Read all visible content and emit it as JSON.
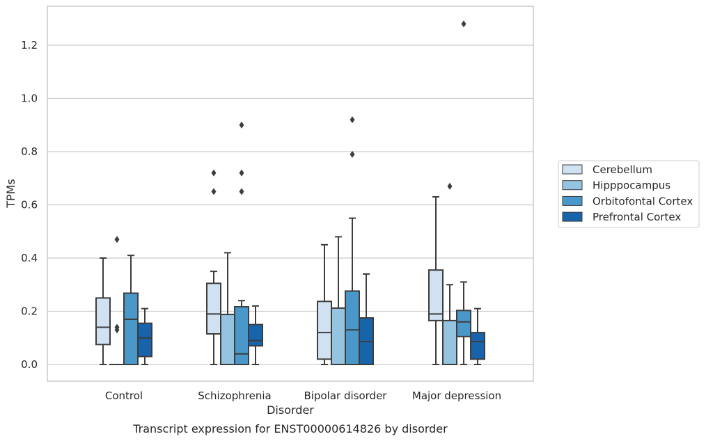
{
  "chart_data": {
    "type": "boxplot",
    "title": "Transcript expression for ENST00000614826 by disorder",
    "xlabel": "Disorder",
    "ylabel": "TPMs",
    "ylim": [
      -0.06,
      1.36
    ],
    "yticks": [
      0.0,
      0.2,
      0.4,
      0.6,
      0.8,
      1.0,
      1.2
    ],
    "ytick_labels": [
      "0.0",
      "0.2",
      "0.4",
      "0.6",
      "0.8",
      "1.0",
      "1.2"
    ],
    "grid": "y",
    "legend_position": "center-right outside",
    "categories": [
      "Control",
      "Schizophrenia",
      "Bipolar disorder",
      "Major depression"
    ],
    "series": [
      {
        "name": "Cerebellum",
        "color": "#d0e1f2",
        "boxes": [
          {
            "whislo": 0.0,
            "q1": 0.075,
            "med": 0.14,
            "q3": 0.25,
            "whishi": 0.4,
            "fliers": []
          },
          {
            "whislo": 0.0,
            "q1": 0.115,
            "med": 0.19,
            "q3": 0.305,
            "whishi": 0.35,
            "fliers": [
              0.65,
              0.72
            ]
          },
          {
            "whislo": 0.0,
            "q1": 0.02,
            "med": 0.12,
            "q3": 0.237,
            "whishi": 0.45,
            "fliers": []
          },
          {
            "whislo": 0.0,
            "q1": 0.165,
            "med": 0.19,
            "q3": 0.355,
            "whishi": 0.63,
            "fliers": []
          }
        ]
      },
      {
        "name": "Hipppocampus",
        "color": "#94c4df",
        "boxes": [
          {
            "whislo": 0.0,
            "q1": 0.0,
            "med": 0.0,
            "q3": 0.0,
            "whishi": 0.0,
            "fliers": [
              0.13,
              0.14,
              0.47
            ]
          },
          {
            "whislo": 0.0,
            "q1": 0.0,
            "med": 0.0,
            "q3": 0.188,
            "whishi": 0.42,
            "fliers": []
          },
          {
            "whislo": 0.0,
            "q1": 0.0,
            "med": 0.0,
            "q3": 0.212,
            "whishi": 0.48,
            "fliers": []
          },
          {
            "whislo": 0.0,
            "q1": 0.0,
            "med": 0.0,
            "q3": 0.165,
            "whishi": 0.3,
            "fliers": [
              0.67
            ]
          }
        ]
      },
      {
        "name": "Orbitofontal Cortex",
        "color": "#4a98c9",
        "boxes": [
          {
            "whislo": 0.0,
            "q1": 0.0,
            "med": 0.17,
            "q3": 0.268,
            "whishi": 0.41,
            "fliers": []
          },
          {
            "whislo": 0.0,
            "q1": 0.0,
            "med": 0.04,
            "q3": 0.217,
            "whishi": 0.24,
            "fliers": [
              0.65,
              0.72,
              0.9
            ]
          },
          {
            "whislo": 0.0,
            "q1": 0.0,
            "med": 0.13,
            "q3": 0.276,
            "whishi": 0.55,
            "fliers": [
              0.79,
              0.92
            ]
          },
          {
            "whislo": 0.0,
            "q1": 0.105,
            "med": 0.16,
            "q3": 0.203,
            "whishi": 0.31,
            "fliers": [
              1.28
            ]
          }
        ]
      },
      {
        "name": "Prefrontal Cortex",
        "color": "#1764ab",
        "boxes": [
          {
            "whislo": 0.0,
            "q1": 0.03,
            "med": 0.1,
            "q3": 0.155,
            "whishi": 0.21,
            "fliers": []
          },
          {
            "whislo": 0.0,
            "q1": 0.07,
            "med": 0.09,
            "q3": 0.15,
            "whishi": 0.22,
            "fliers": []
          },
          {
            "whislo": 0.0,
            "q1": 0.0,
            "med": 0.086,
            "q3": 0.175,
            "whishi": 0.34,
            "fliers": []
          },
          {
            "whislo": 0.0,
            "q1": 0.02,
            "med": 0.086,
            "q3": 0.12,
            "whishi": 0.21,
            "fliers": []
          }
        ]
      }
    ]
  }
}
